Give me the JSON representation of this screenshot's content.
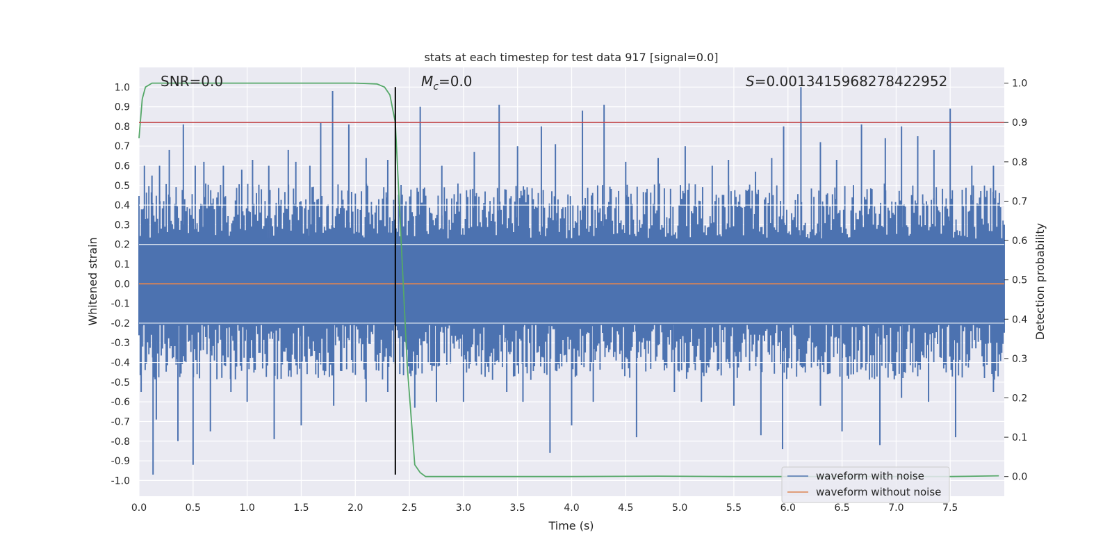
{
  "chart_data": {
    "type": "line",
    "title": "stats at each timestep for test data 917 [signal=0.0]",
    "xlabel": "Time (s)",
    "ylabel_left": "Whitened strain",
    "ylabel_right": "Detection probability",
    "xlim": [
      0.0,
      8.0
    ],
    "ylim_left": [
      -1.08,
      1.1
    ],
    "ylim_right": [
      -0.05,
      1.04
    ],
    "x_ticks": [
      0.0,
      0.5,
      1.0,
      1.5,
      2.0,
      2.5,
      3.0,
      3.5,
      4.0,
      4.5,
      5.0,
      5.5,
      6.0,
      6.5,
      7.0,
      7.5
    ],
    "x_tick_labels": [
      "0.0",
      "0.5",
      "1.0",
      "1.5",
      "2.0",
      "2.5",
      "3.0",
      "3.5",
      "4.0",
      "4.5",
      "5.0",
      "5.5",
      "6.0",
      "6.5",
      "7.0",
      "7.5"
    ],
    "y_left_ticks": [
      1.0,
      0.9,
      0.8,
      0.7,
      0.6,
      0.5,
      0.4,
      0.3,
      0.2,
      0.1,
      0.0,
      -0.1,
      -0.2,
      -0.3,
      -0.4,
      -0.5,
      -0.6,
      -0.7,
      -0.8,
      -0.9,
      -1.0
    ],
    "y_left_tick_labels": [
      "1.0",
      "0.9",
      "0.8",
      "0.7",
      "0.6",
      "0.5",
      "0.4",
      "0.3",
      "0.2",
      "0.1",
      "0.0",
      "-0.1",
      "-0.2",
      "-0.3",
      "-0.4",
      "-0.5",
      "-0.6",
      "-0.7",
      "-0.8",
      "-0.9",
      "-1.0"
    ],
    "y_right_ticks": [
      1.0,
      0.9,
      0.8,
      0.7,
      0.6,
      0.5,
      0.4,
      0.3,
      0.2,
      0.1,
      0.0
    ],
    "y_right_tick_labels": [
      "1.0",
      "0.9",
      "0.8",
      "0.7",
      "0.6",
      "0.5",
      "0.4",
      "0.3",
      "0.2",
      "0.1",
      "0.0"
    ],
    "annotations": {
      "snr": "SNR=0.0",
      "mc_symbol": "M",
      "mc_sub": "c",
      "mc_value": "=0.0",
      "s_symbol": "S",
      "s_value": "=0.0013415968278422952"
    },
    "threshold_line": {
      "axis": "right",
      "value": 0.9,
      "color": "#c44e52"
    },
    "vertical_marker": {
      "x": 2.37,
      "color": "#000000"
    },
    "noise_envelope": {
      "name": "waveform with noise",
      "color": "#4c72b0",
      "core_abs": 0.21,
      "peaks_up": [
        [
          0.05,
          0.6
        ],
        [
          0.12,
          0.55
        ],
        [
          0.19,
          0.6
        ],
        [
          0.28,
          0.68
        ],
        [
          0.41,
          0.81
        ],
        [
          0.52,
          0.6
        ],
        [
          0.6,
          0.62
        ],
        [
          0.78,
          0.6
        ],
        [
          0.95,
          0.58
        ],
        [
          1.05,
          0.63
        ],
        [
          1.2,
          0.6
        ],
        [
          1.38,
          0.68
        ],
        [
          1.45,
          0.62
        ],
        [
          1.58,
          0.6
        ],
        [
          1.68,
          0.82
        ],
        [
          1.79,
          0.98
        ],
        [
          1.94,
          0.81
        ],
        [
          2.1,
          0.64
        ],
        [
          2.3,
          0.63
        ],
        [
          2.6,
          0.9
        ],
        [
          2.8,
          0.6
        ],
        [
          3.1,
          0.67
        ],
        [
          3.33,
          0.91
        ],
        [
          3.5,
          0.7
        ],
        [
          3.72,
          0.8
        ],
        [
          3.85,
          0.71
        ],
        [
          4.1,
          0.88
        ],
        [
          4.3,
          0.91
        ],
        [
          4.5,
          0.62
        ],
        [
          4.8,
          0.64
        ],
        [
          5.05,
          0.7
        ],
        [
          5.3,
          0.6
        ],
        [
          5.45,
          0.63
        ],
        [
          5.7,
          0.57
        ],
        [
          5.85,
          0.64
        ],
        [
          5.96,
          0.8
        ],
        [
          6.12,
          1.0
        ],
        [
          6.3,
          0.72
        ],
        [
          6.45,
          0.63
        ],
        [
          6.68,
          0.81
        ],
        [
          6.9,
          0.74
        ],
        [
          7.05,
          0.8
        ],
        [
          7.2,
          0.75
        ],
        [
          7.35,
          0.68
        ],
        [
          7.5,
          0.89
        ],
        [
          7.7,
          0.6
        ],
        [
          7.9,
          0.6
        ]
      ],
      "peaks_down": [
        [
          0.02,
          -0.55
        ],
        [
          0.13,
          -0.97
        ],
        [
          0.16,
          -0.69
        ],
        [
          0.36,
          -0.8
        ],
        [
          0.5,
          -0.92
        ],
        [
          0.66,
          -0.75
        ],
        [
          0.85,
          -0.55
        ],
        [
          1.0,
          -0.6
        ],
        [
          1.25,
          -0.79
        ],
        [
          1.5,
          -0.72
        ],
        [
          1.8,
          -0.62
        ],
        [
          2.1,
          -0.6
        ],
        [
          2.3,
          -0.55
        ],
        [
          2.55,
          -0.63
        ],
        [
          2.75,
          -0.6
        ],
        [
          3.0,
          -0.6
        ],
        [
          3.4,
          -0.55
        ],
        [
          3.55,
          -0.6
        ],
        [
          3.8,
          -0.86
        ],
        [
          4.0,
          -0.72
        ],
        [
          4.2,
          -0.6
        ],
        [
          4.6,
          -0.78
        ],
        [
          4.95,
          -0.55
        ],
        [
          5.2,
          -0.6
        ],
        [
          5.5,
          -0.62
        ],
        [
          5.75,
          -0.77
        ],
        [
          5.95,
          -0.84
        ],
        [
          6.3,
          -0.62
        ],
        [
          6.5,
          -0.75
        ],
        [
          6.85,
          -0.82
        ],
        [
          7.05,
          -0.58
        ],
        [
          7.3,
          -0.6
        ],
        [
          7.55,
          -0.78
        ],
        [
          7.9,
          -0.55
        ]
      ]
    },
    "series": [
      {
        "name": "waveform without noise",
        "axis": "left",
        "color": "#dd8452",
        "x": [
          0.0,
          8.0
        ],
        "y": [
          0.0,
          0.0
        ]
      },
      {
        "name": "Detection probability",
        "axis": "right",
        "color": "#55a868",
        "x": [
          0.0,
          0.03,
          0.06,
          0.12,
          0.2,
          0.5,
          1.0,
          1.5,
          2.0,
          2.2,
          2.27,
          2.32,
          2.37,
          2.42,
          2.48,
          2.55,
          2.6,
          2.65,
          3.0,
          4.0,
          4.8,
          5.5,
          6.5,
          7.5,
          7.95
        ],
        "y": [
          0.86,
          0.96,
          0.99,
          1.0,
          1.0,
          1.0,
          1.0,
          1.0,
          1.0,
          0.998,
          0.99,
          0.97,
          0.9,
          0.62,
          0.28,
          0.03,
          0.01,
          0.0,
          0.0,
          0.0,
          0.001,
          0.0,
          0.0,
          0.0,
          0.002
        ]
      }
    ],
    "legend": {
      "placement": "lower-right",
      "entries": [
        {
          "label": "waveform with noise",
          "color": "#4c72b0"
        },
        {
          "label": "waveform without noise",
          "color": "#dd8452"
        }
      ]
    },
    "grid": true
  }
}
